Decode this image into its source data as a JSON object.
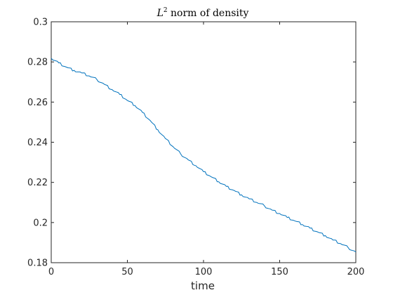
{
  "chart_data": {
    "type": "line",
    "title": {
      "symbol": "L",
      "superscript": "2",
      "text": " norm of density"
    },
    "xlabel": "time",
    "ylabel": "",
    "xlim": [
      0,
      200
    ],
    "ylim": [
      0.18,
      0.3
    ],
    "xticks": [
      0,
      50,
      100,
      150,
      200
    ],
    "xtick_labels": [
      "0",
      "50",
      "100",
      "150",
      "200"
    ],
    "yticks": [
      0.18,
      0.2,
      0.22,
      0.24,
      0.26,
      0.28,
      0.3
    ],
    "ytick_labels": [
      "0.18",
      "0.2",
      "0.22",
      "0.24",
      "0.26",
      "0.28",
      "0.3"
    ],
    "grid": false,
    "legend": "none",
    "line_color": "#0072bd",
    "axis_color": "#262626",
    "series": [
      {
        "x": [
          0,
          5,
          10,
          15,
          20,
          25,
          30,
          35,
          40,
          45,
          50,
          55,
          60,
          65,
          70,
          75,
          80,
          85,
          90,
          95,
          100,
          105,
          110,
          115,
          120,
          125,
          130,
          135,
          140,
          145,
          150,
          155,
          160,
          165,
          170,
          175,
          180,
          185,
          190,
          195,
          200
        ],
        "values": [
          0.2818,
          0.2795,
          0.2774,
          0.2758,
          0.2745,
          0.273,
          0.2712,
          0.2688,
          0.2662,
          0.2638,
          0.2608,
          0.2583,
          0.2548,
          0.2508,
          0.2462,
          0.2418,
          0.2378,
          0.2342,
          0.2312,
          0.2283,
          0.2253,
          0.2228,
          0.2203,
          0.218,
          0.216,
          0.2138,
          0.2118,
          0.21,
          0.2083,
          0.2062,
          0.2045,
          0.2025,
          0.2008,
          0.199,
          0.1972,
          0.1953,
          0.1935,
          0.1913,
          0.1895,
          0.1875,
          0.1853
        ]
      }
    ]
  }
}
